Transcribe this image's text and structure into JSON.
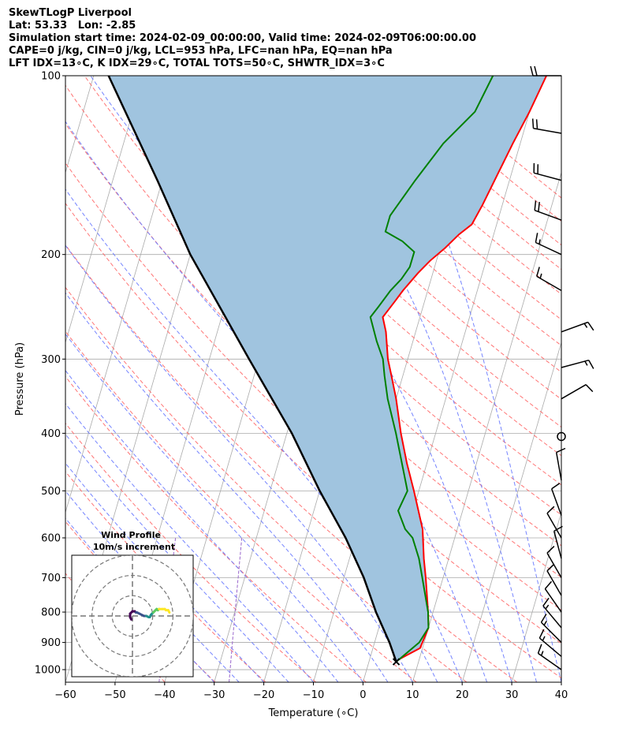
{
  "header": {
    "line1": "SkewTLogP Liverpool",
    "line2": "Lat: 53.33   Lon: -2.85",
    "line3": "Simulation start time: 2024-02-09_00:00:00, Valid time: 2024-02-09T06:00:00.00",
    "line4": "CAPE=0 j/kg, CIN=0 j/kg, LCL=953 hPa, LFC=nan hPa, EQ=nan hPa",
    "line5": "LFT IDX=13∘C, K IDX=29∘C, TOTAL TOTS=50∘C, SHWTR_IDX=3∘C"
  },
  "chart_data": {
    "type": "line",
    "subtype": "skew-T log-P sounding",
    "xlabel": "Temperature (∘C)",
    "ylabel": "Pressure (hPa)",
    "xlim": [
      -60,
      40
    ],
    "ylim": [
      1050,
      100
    ],
    "y_scale": "log",
    "x_ticks": [
      "−60",
      "−50",
      "−40",
      "−30",
      "−20",
      "−10",
      "0",
      "10",
      "20",
      "30",
      "40"
    ],
    "y_ticks": [
      "100",
      "200",
      "300",
      "400",
      "500",
      "600",
      "700",
      "800",
      "900",
      "1000"
    ],
    "grid": true,
    "colors": {
      "temperature": "#ff0000",
      "dewpoint": "#008000",
      "parcel": "#000000",
      "cape_fill": "#a0c4df",
      "dry_adiabat": "#ff6666",
      "moist_adiabat": "#6677ff",
      "mixing_ratio": "#9966cc",
      "isotherm": "#aaaaaa"
    },
    "series": [
      {
        "key": "temperature",
        "values": [
          [
            960,
            6
          ],
          [
            920,
            9.5
          ],
          [
            850,
            10
          ],
          [
            800,
            9
          ],
          [
            700,
            6.5
          ],
          [
            650,
            5
          ],
          [
            580,
            3
          ],
          [
            500,
            -1
          ],
          [
            450,
            -4
          ],
          [
            400,
            -7
          ],
          [
            350,
            -10
          ],
          [
            320,
            -12.3
          ],
          [
            300,
            -14
          ],
          [
            270,
            -16
          ],
          [
            255,
            -17.5
          ],
          [
            240,
            -16
          ],
          [
            230,
            -15
          ],
          [
            215,
            -13
          ],
          [
            205,
            -11.3
          ],
          [
            195,
            -9
          ],
          [
            185,
            -7
          ],
          [
            178,
            -5
          ],
          [
            165,
            -4
          ],
          [
            150,
            -3
          ],
          [
            130,
            -1.5
          ],
          [
            115,
            0
          ],
          [
            100,
            1.3
          ]
        ]
      },
      {
        "key": "dewpoint",
        "values": [
          [
            970,
            5.5
          ],
          [
            900,
            9
          ],
          [
            850,
            10
          ],
          [
            800,
            9
          ],
          [
            700,
            5.8
          ],
          [
            650,
            4
          ],
          [
            600,
            1.5
          ],
          [
            580,
            -0.5
          ],
          [
            540,
            -3
          ],
          [
            500,
            -2.3
          ],
          [
            450,
            -5
          ],
          [
            400,
            -8
          ],
          [
            350,
            -11.7
          ],
          [
            320,
            -13.7
          ],
          [
            300,
            -15
          ],
          [
            280,
            -17.3
          ],
          [
            255,
            -20
          ],
          [
            245,
            -19
          ],
          [
            230,
            -17.5
          ],
          [
            220,
            -16
          ],
          [
            210,
            -15
          ],
          [
            198,
            -15
          ],
          [
            190,
            -18
          ],
          [
            183,
            -22
          ],
          [
            172,
            -22
          ],
          [
            150,
            -19
          ],
          [
            130,
            -15.5
          ],
          [
            115,
            -11
          ],
          [
            100,
            -9.5
          ]
        ]
      },
      {
        "key": "parcel",
        "values": [
          [
            970,
            5.5
          ],
          [
            900,
            3
          ],
          [
            800,
            -1.5
          ],
          [
            700,
            -6
          ],
          [
            600,
            -12
          ],
          [
            500,
            -20
          ],
          [
            400,
            -29
          ],
          [
            300,
            -42
          ],
          [
            200,
            -60
          ],
          [
            150,
            -71
          ],
          [
            100,
            -87
          ]
        ]
      }
    ],
    "wind_barbs": [
      {
        "p": 100,
        "speed": 20,
        "dir": 270
      },
      {
        "p": 125,
        "speed": 20,
        "dir": 280
      },
      {
        "p": 150,
        "speed": 20,
        "dir": 285
      },
      {
        "p": 175,
        "speed": 20,
        "dir": 290
      },
      {
        "p": 200,
        "speed": 15,
        "dir": 295
      },
      {
        "p": 230,
        "speed": 15,
        "dir": 300
      },
      {
        "p": 270,
        "speed": 15,
        "dir": 70
      },
      {
        "p": 310,
        "speed": 15,
        "dir": 75
      },
      {
        "p": 350,
        "speed": 10,
        "dir": 60
      },
      {
        "p": 405,
        "speed": 0,
        "dir": 0
      },
      {
        "p": 480,
        "speed": 10,
        "dir": 350
      },
      {
        "p": 550,
        "speed": 10,
        "dir": 340
      },
      {
        "p": 600,
        "speed": 10,
        "dir": 330
      },
      {
        "p": 650,
        "speed": 10,
        "dir": 345
      },
      {
        "p": 700,
        "speed": 10,
        "dir": 330
      },
      {
        "p": 750,
        "speed": 10,
        "dir": 330
      },
      {
        "p": 800,
        "speed": 10,
        "dir": 325
      },
      {
        "p": 850,
        "speed": 15,
        "dir": 320
      },
      {
        "p": 900,
        "speed": 15,
        "dir": 315
      },
      {
        "p": 950,
        "speed": 15,
        "dir": 310
      },
      {
        "p": 1000,
        "speed": 15,
        "dir": 305
      }
    ],
    "inset": {
      "title": "Wind Profile",
      "subtitle": "10m/s increment",
      "rings_ms": [
        10,
        20,
        30
      ],
      "colormap": [
        "#440154",
        "#3b528b",
        "#21918c",
        "#5ec962",
        "#fde725"
      ],
      "hodograph_uv": [
        [
          -1,
          -3
        ],
        [
          -2,
          -1
        ],
        [
          -2,
          2
        ],
        [
          0,
          4
        ],
        [
          2,
          4
        ],
        [
          3,
          3
        ],
        [
          4,
          3
        ],
        [
          6,
          2
        ],
        [
          8,
          1
        ],
        [
          10,
          0
        ],
        [
          12,
          0
        ],
        [
          14,
          -1
        ],
        [
          15,
          -1
        ],
        [
          16,
          1
        ],
        [
          17,
          2
        ],
        [
          18,
          3
        ],
        [
          19,
          4
        ],
        [
          20,
          5
        ],
        [
          21,
          6
        ],
        [
          22,
          5
        ],
        [
          23,
          6
        ],
        [
          26,
          6
        ],
        [
          28,
          6
        ],
        [
          29,
          5
        ],
        [
          31,
          5
        ],
        [
          32,
          3
        ]
      ]
    }
  }
}
